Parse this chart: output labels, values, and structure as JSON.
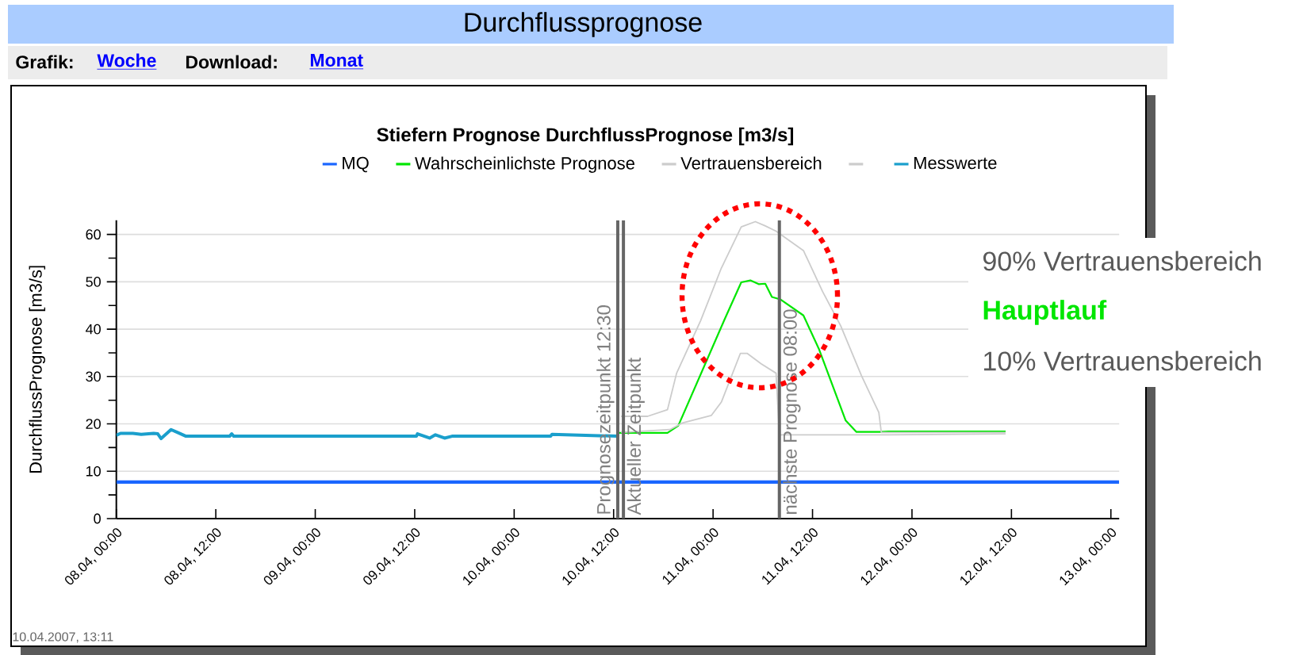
{
  "chart_data": {
    "type": "line",
    "title": "Stiefern Prognose DurchflussPrognose [m3/s]",
    "ylabel": "DurchflussPrognose [m3/s]",
    "xlim": [
      "2007-04-08T00:00",
      "2007-04-13T01:00"
    ],
    "ylim": [
      0,
      63
    ],
    "xticks": [
      {
        "value": "2007-04-08T00:00",
        "label": "08.04, 00:00"
      },
      {
        "value": "2007-04-08T12:00",
        "label": "08.04, 12:00"
      },
      {
        "value": "2007-04-09T00:00",
        "label": "09.04, 00:00"
      },
      {
        "value": "2007-04-09T12:00",
        "label": "09.04, 12:00"
      },
      {
        "value": "2007-04-10T00:00",
        "label": "10.04, 00:00"
      },
      {
        "value": "2007-04-10T12:00",
        "label": "10.04, 12:00"
      },
      {
        "value": "2007-04-11T00:00",
        "label": "11.04, 00:00"
      },
      {
        "value": "2007-04-11T12:00",
        "label": "11.04, 12:00"
      },
      {
        "value": "2007-04-12T00:00",
        "label": "12.04, 00:00"
      },
      {
        "value": "2007-04-12T12:00",
        "label": "12.04, 12:00"
      },
      {
        "value": "2007-04-13T00:00",
        "label": "13.04, 00:00"
      }
    ],
    "yticks": [
      0,
      10,
      20,
      30,
      40,
      50,
      60
    ],
    "grid": "y",
    "legend": "top",
    "marker": "none",
    "line_style": "solid",
    "series": [
      {
        "name": "MQ",
        "color": "#1a66ff",
        "x": [
          "2007-04-08T00:00",
          "2007-04-13T01:00"
        ],
        "values": [
          7.7,
          7.7
        ]
      },
      {
        "name": "Wahrscheinlichste Prognose",
        "color": "#00e600",
        "x": [
          "2007-04-10T12:30",
          "2007-04-10T18:30",
          "2007-04-10T19:48",
          "2007-04-11T01:24",
          "2007-04-11T03:24",
          "2007-04-11T04:30",
          "2007-04-11T05:30",
          "2007-04-11T06:18",
          "2007-04-11T07:06",
          "2007-04-11T08:06",
          "2007-04-11T10:54",
          "2007-04-11T12:48",
          "2007-04-11T16:00",
          "2007-04-11T17:18",
          "2007-04-11T20:12",
          "2007-04-11T21:12",
          "2007-04-12T11:18"
        ],
        "values": [
          18.1,
          18.1,
          19.6,
          42.1,
          49.9,
          50.3,
          49.5,
          49.6,
          46.8,
          46.3,
          42.9,
          35.7,
          20.7,
          18.3,
          18.3,
          18.4,
          18.4
        ]
      },
      {
        "name": "Vertrauensbereich",
        "color": "#cccccc",
        "x": [
          "2007-04-10T12:54",
          "2007-04-10T16:06",
          "2007-04-10T18:30",
          "2007-04-10T19:36",
          "2007-04-10T22:30",
          "2007-04-11T01:00",
          "2007-04-11T03:24",
          "2007-04-11T05:06",
          "2007-04-11T06:18",
          "2007-04-11T07:36",
          "2007-04-11T10:54",
          "2007-04-11T13:12",
          "2007-04-11T15:24",
          "2007-04-11T17:54",
          "2007-04-11T20:00",
          "2007-04-11T20:18",
          "2007-04-12T11:18"
        ],
        "values": [
          21.6,
          21.6,
          23.0,
          30.7,
          41.8,
          52.9,
          61.6,
          62.7,
          61.8,
          60.7,
          56.6,
          48.0,
          40.7,
          30.2,
          22.4,
          18.2,
          18.2
        ]
      },
      {
        "color": "#cccccc",
        "x": [
          "2007-04-10T12:54",
          "2007-04-10T18:48",
          "2007-04-10T20:18",
          "2007-04-10T23:48",
          "2007-04-11T01:00",
          "2007-04-11T03:18",
          "2007-04-11T04:06",
          "2007-04-11T05:48",
          "2007-04-11T07:36",
          "2007-04-11T08:00",
          "2007-04-11T21:00",
          "2007-04-12T11:18"
        ],
        "values": [
          18.2,
          18.8,
          20.2,
          21.8,
          24.6,
          34.9,
          34.9,
          32.7,
          30.7,
          17.7,
          17.7,
          17.9
        ]
      },
      {
        "name": "Messwerte",
        "color": "#1a9fcc",
        "x": [
          "2007-04-08T00:00",
          "2007-04-08T00:30",
          "2007-04-08T02:00",
          "2007-04-08T03:00",
          "2007-04-08T04:30",
          "2007-04-08T05:00",
          "2007-04-08T05:24",
          "2007-04-08T06:36",
          "2007-04-08T07:30",
          "2007-04-08T08:24",
          "2007-04-08T13:40",
          "2007-04-08T13:55",
          "2007-04-08T14:10",
          "2007-04-09T12:12",
          "2007-04-09T12:20",
          "2007-04-09T13:48",
          "2007-04-09T14:30",
          "2007-04-09T15:36",
          "2007-04-09T16:30",
          "2007-04-10T04:24",
          "2007-04-10T04:34",
          "2007-04-10T12:30"
        ],
        "values": [
          17.6,
          18.0,
          18.0,
          17.8,
          18.0,
          17.9,
          16.9,
          18.8,
          18.1,
          17.4,
          17.4,
          17.9,
          17.4,
          17.4,
          17.9,
          17.0,
          17.7,
          17.0,
          17.4,
          17.4,
          17.8,
          17.4
        ]
      }
    ],
    "ref_lines": [
      {
        "axis": "x",
        "value": "2007-04-10T12:30",
        "label": "Prognosezeitpunkt 12:30",
        "color": "#666666"
      },
      {
        "axis": "x",
        "value": "2007-04-10T13:11",
        "label": "Aktueller Zeitpunkt",
        "color": "#666666"
      },
      {
        "axis": "x",
        "value": "2007-04-11T08:00",
        "label": "nächste Prognose 08:00",
        "color": "#666666"
      }
    ],
    "annotations": [
      "Durchflussprognose",
      "Grafik:",
      "Woche",
      "Download:",
      "Monat",
      "10.04.2007, 13:11",
      "90% Vertrauensbereich",
      "Hauptlauf",
      "10% Vertrauensbereich"
    ]
  }
}
